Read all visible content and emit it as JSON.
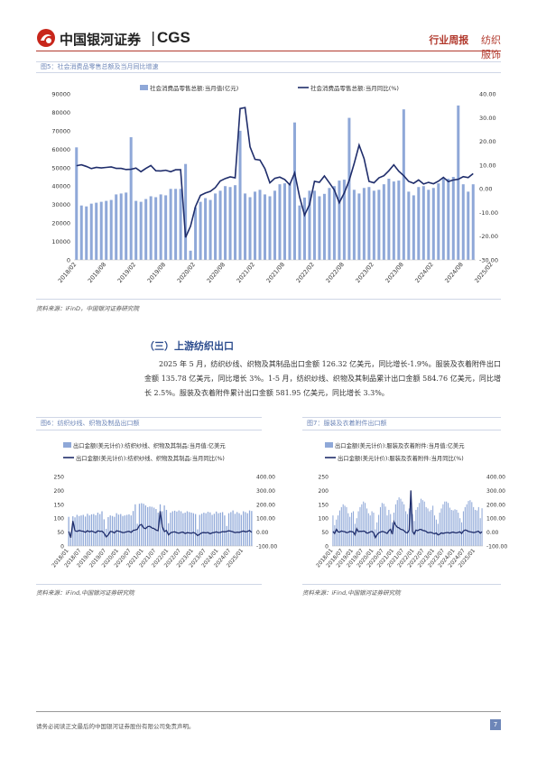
{
  "header": {
    "brand_cn": "中国银河证券",
    "brand_en": "CGS",
    "category": "行业周报",
    "sector": "纺织服饰",
    "separator": "|"
  },
  "fig5": {
    "caption": "图5：社会消费品零售总额及当月同比增速",
    "source": "资料来源：iFinD，中国银河证券研究院"
  },
  "section": {
    "title": "（三）上游纺织出口",
    "paragraph": "2025 年 5 月，纺织纱线、织物及其制品出口金额 126.32 亿美元，同比增长-1.9%。服装及衣着附件出口金额 135.78 亿美元，同比增长 3%。1-5 月，纺织纱线、织物及其制品累计出口金额 584.76 亿美元，同比增长 2.5%。服装及衣着附件累计出口金额 581.95 亿美元，同比增长 3.3%。"
  },
  "fig6": {
    "caption": "图6：纺织纱线、织物及制品出口额",
    "source": "资料来源：iFind,中国银河证券研究院"
  },
  "fig7": {
    "caption": "图7：服装及衣着附件出口额",
    "source": "资料来源：iFind,中国银河证券研究院"
  },
  "footer": {
    "disclaimer": "请务必阅读正文最后的中国银河证券股份有限公司免责声明。",
    "page": "7"
  },
  "colors": {
    "bar": "#8fa8d8",
    "line": "#1f2d6b",
    "accent": "#b23a2e"
  },
  "chart_data": [
    {
      "type": "bar",
      "id": "fig5",
      "series": [
        {
          "name": "社会消费品零售总额:当月值(亿元)",
          "kind": "bar",
          "axis": "left",
          "values": [
            61000,
            29500,
            29000,
            30500,
            31000,
            31500,
            32000,
            32500,
            35500,
            36000,
            36500,
            66500,
            32000,
            31500,
            33000,
            34500,
            34000,
            35500,
            35000,
            38500,
            38500,
            38500,
            52000,
            5000,
            28500,
            31500,
            33500,
            32500,
            36000,
            37500,
            40000,
            39500,
            40500,
            70000,
            36000,
            34000,
            37000,
            38000,
            35500,
            34500,
            37500,
            41000,
            41500,
            41500,
            74500,
            29500,
            33800,
            37500,
            37500,
            34500,
            35800,
            39000,
            40000,
            43000,
            43500,
            77000,
            38000,
            36000,
            39000,
            39500,
            37500,
            38000,
            41000,
            44000,
            42500,
            43000,
            81600,
            37000,
            35000,
            39500,
            40000,
            38000,
            39000,
            41500,
            44500,
            44000,
            45000,
            83700,
            41000,
            37000,
            41000
          ]
        },
        {
          "name": "社会消费品零售总额:当月同比(%)",
          "kind": "line",
          "axis": "right",
          "values": [
            9.7,
            10.1,
            9.4,
            8.5,
            9.0,
            8.8,
            9.0,
            9.2,
            8.6,
            8.6,
            8.1,
            8.2,
            8.7,
            7.2,
            8.6,
            9.8,
            7.6,
            7.5,
            7.8,
            7.2,
            8.0,
            8.0,
            -20.5,
            -15.8,
            -7.5,
            -2.8,
            -1.8,
            -1.1,
            0.5,
            3.3,
            4.3,
            5.0,
            4.6,
            33.8,
            34.2,
            17.7,
            12.4,
            12.1,
            8.5,
            2.5,
            4.4,
            4.9,
            3.9,
            1.7,
            6.7,
            -3.5,
            -11.1,
            -6.7,
            3.1,
            2.7,
            5.4,
            2.5,
            -0.5,
            -5.9,
            -1.8,
            3.5,
            10.6,
            18.4,
            12.7,
            3.1,
            2.5,
            4.6,
            5.5,
            7.6,
            10.1,
            7.4,
            5.5,
            3.1,
            2.3,
            3.7,
            2.0,
            2.7,
            2.1,
            3.2,
            4.8,
            3.0,
            3.7,
            4.0,
            5.1,
            4.7,
            6.4
          ]
        }
      ],
      "x_ticks": [
        "2018/02",
        "2018/08",
        "2019/02",
        "2019/08",
        "2020/02",
        "2020/08",
        "2021/02",
        "2021/08",
        "2022/02",
        "2022/08",
        "2023/02",
        "2023/08",
        "2024/02",
        "2024/08",
        "2025/02"
      ],
      "y_left_ticks": [
        "0",
        "10000",
        "20000",
        "30000",
        "40000",
        "50000",
        "60000",
        "70000",
        "80000",
        "90000"
      ],
      "y_right_ticks": [
        "-30.00",
        "-20.00",
        "-10.00",
        "0.00",
        "10.00",
        "20.00",
        "30.00",
        "40.00"
      ],
      "ylim_left": [
        0,
        90000
      ],
      "ylim_right": [
        -30,
        40
      ],
      "legend": "top"
    },
    {
      "type": "bar",
      "id": "fig6",
      "series": [
        {
          "name": "出口金额(美元计价):纺织纱线、织物及其制品:当月值:亿美元",
          "kind": "bar",
          "axis": "left",
          "values": [
            105,
            50,
            107,
            103,
            112,
            108,
            110,
            112,
            106,
            116,
            110,
            114,
            115,
            111,
            120,
            115,
            125,
            96,
            62,
            104,
            110,
            108,
            105,
            118,
            113,
            115,
            108,
            110,
            112,
            114,
            110,
            126,
            150,
            80,
            152,
            154,
            152,
            146,
            140,
            142,
            141,
            138,
            133,
            120,
            150,
            125,
            146,
            130,
            82,
            120,
            125,
            127,
            124,
            128,
            125,
            118,
            120,
            125,
            122,
            120,
            118,
            115,
            60,
            112,
            116,
            120,
            118,
            123,
            121,
            112,
            116,
            124,
            118,
            120,
            122,
            110,
            72,
            118,
            122,
            128,
            116,
            122,
            118,
            112,
            125,
            122,
            118,
            128,
            126
          ]
        },
        {
          "name": "出口金额(美元计价):纺织纱线、织物及其制品:当月同比(%)",
          "kind": "line",
          "axis": "right",
          "values": [
            5,
            -40,
            80,
            10,
            5,
            12,
            8,
            6,
            -2,
            10,
            2,
            8,
            2,
            -5,
            10,
            5,
            7,
            -8,
            -35,
            -20,
            5,
            3,
            -6,
            10,
            6,
            2,
            -4,
            -2,
            3,
            6,
            -2,
            12,
            15,
            20,
            48,
            55,
            30,
            25,
            40,
            42,
            30,
            26,
            15,
            10,
            150,
            40,
            4,
            12,
            -20,
            -5,
            0,
            2,
            -4,
            -8,
            -2,
            0,
            -10,
            -4,
            -6,
            -8,
            -2,
            -10,
            -25,
            -15,
            -5,
            -3,
            -6,
            -2,
            -12,
            -5,
            -3,
            2,
            -4,
            -2,
            4,
            2,
            5,
            10,
            6,
            2,
            -4,
            0,
            -2,
            3,
            8,
            2,
            5,
            12,
            -1.9
          ]
        }
      ],
      "x_ticks": [
        "2018/01",
        "2018/07",
        "2019/01",
        "2019/07",
        "2020/01",
        "2020/07",
        "2021/01",
        "2021/07",
        "2022/01",
        "2022/07",
        "2023/01",
        "2023/07",
        "2024/01",
        "2024/07",
        "2025/01"
      ],
      "y_left_ticks": [
        "0",
        "50",
        "100",
        "150",
        "200",
        "250"
      ],
      "y_right_ticks": [
        "-100.00",
        "0.00",
        "100.00",
        "200.00",
        "300.00",
        "400.00"
      ],
      "ylim_left": [
        0,
        250
      ],
      "ylim_right": [
        -100,
        400
      ],
      "legend": "top"
    },
    {
      "type": "bar",
      "id": "fig7",
      "series": [
        {
          "name": "出口金额(美元计价):服装及衣着附件:当月值:亿美元",
          "kind": "bar",
          "axis": "left",
          "values": [
            110,
            75,
            95,
            110,
            128,
            140,
            150,
            145,
            140,
            118,
            105,
            120,
            125,
            80,
            100,
            125,
            140,
            150,
            160,
            155,
            135,
            118,
            110,
            125,
            120,
            60,
            85,
            112,
            140,
            155,
            152,
            142,
            110,
            130,
            115,
            85,
            120,
            150,
            165,
            175,
            170,
            160,
            150,
            125,
            115,
            135,
            145,
            115,
            90,
            130,
            140,
            155,
            170,
            165,
            160,
            140,
            135,
            125,
            130,
            145,
            110,
            95,
            80,
            120,
            135,
            150,
            160,
            160,
            155,
            138,
            130,
            128,
            132,
            130,
            120,
            100,
            85,
            125,
            140,
            150,
            162,
            165,
            158,
            140,
            130,
            128,
            140,
            100,
            135.78
          ]
        },
        {
          "name": "出口金额(美元计价):服装及衣着附件:当月同比(%)",
          "kind": "line",
          "axis": "right",
          "values": [
            5,
            -10,
            20,
            2,
            0,
            8,
            5,
            3,
            -4,
            -2,
            5,
            4,
            0,
            -20,
            25,
            3,
            6,
            5,
            8,
            4,
            -8,
            -5,
            2,
            6,
            -5,
            -40,
            -20,
            -5,
            0,
            5,
            2,
            -3,
            -10,
            10,
            20,
            -15,
            75,
            50,
            35,
            30,
            20,
            18,
            10,
            -3,
            -5,
            15,
            300,
            5,
            -15,
            15,
            10,
            18,
            20,
            12,
            10,
            5,
            -5,
            -3,
            -2,
            -8,
            -12,
            -6,
            -20,
            -15,
            -5,
            -10,
            -6,
            -4,
            -3,
            -8,
            -2,
            0,
            -4,
            -6,
            -2,
            2,
            -10,
            8,
            15,
            12,
            5,
            2,
            0,
            -3,
            -2,
            4,
            6,
            -8,
            3
          ]
        }
      ],
      "x_ticks": [
        "2018/01",
        "2018/07",
        "2019/01",
        "2019/07",
        "2020/01",
        "2020/07",
        "2021/01",
        "2021/07",
        "2022/01",
        "2022/07",
        "2023/01",
        "2023/07",
        "2024/01",
        "2024/07",
        "2025/01"
      ],
      "y_left_ticks": [
        "0",
        "50",
        "100",
        "150",
        "200",
        "250"
      ],
      "y_right_ticks": [
        "-100.00",
        "0.00",
        "100.00",
        "200.00",
        "300.00",
        "400.00"
      ],
      "ylim_left": [
        0,
        250
      ],
      "ylim_right": [
        -100,
        400
      ],
      "legend": "top"
    }
  ]
}
